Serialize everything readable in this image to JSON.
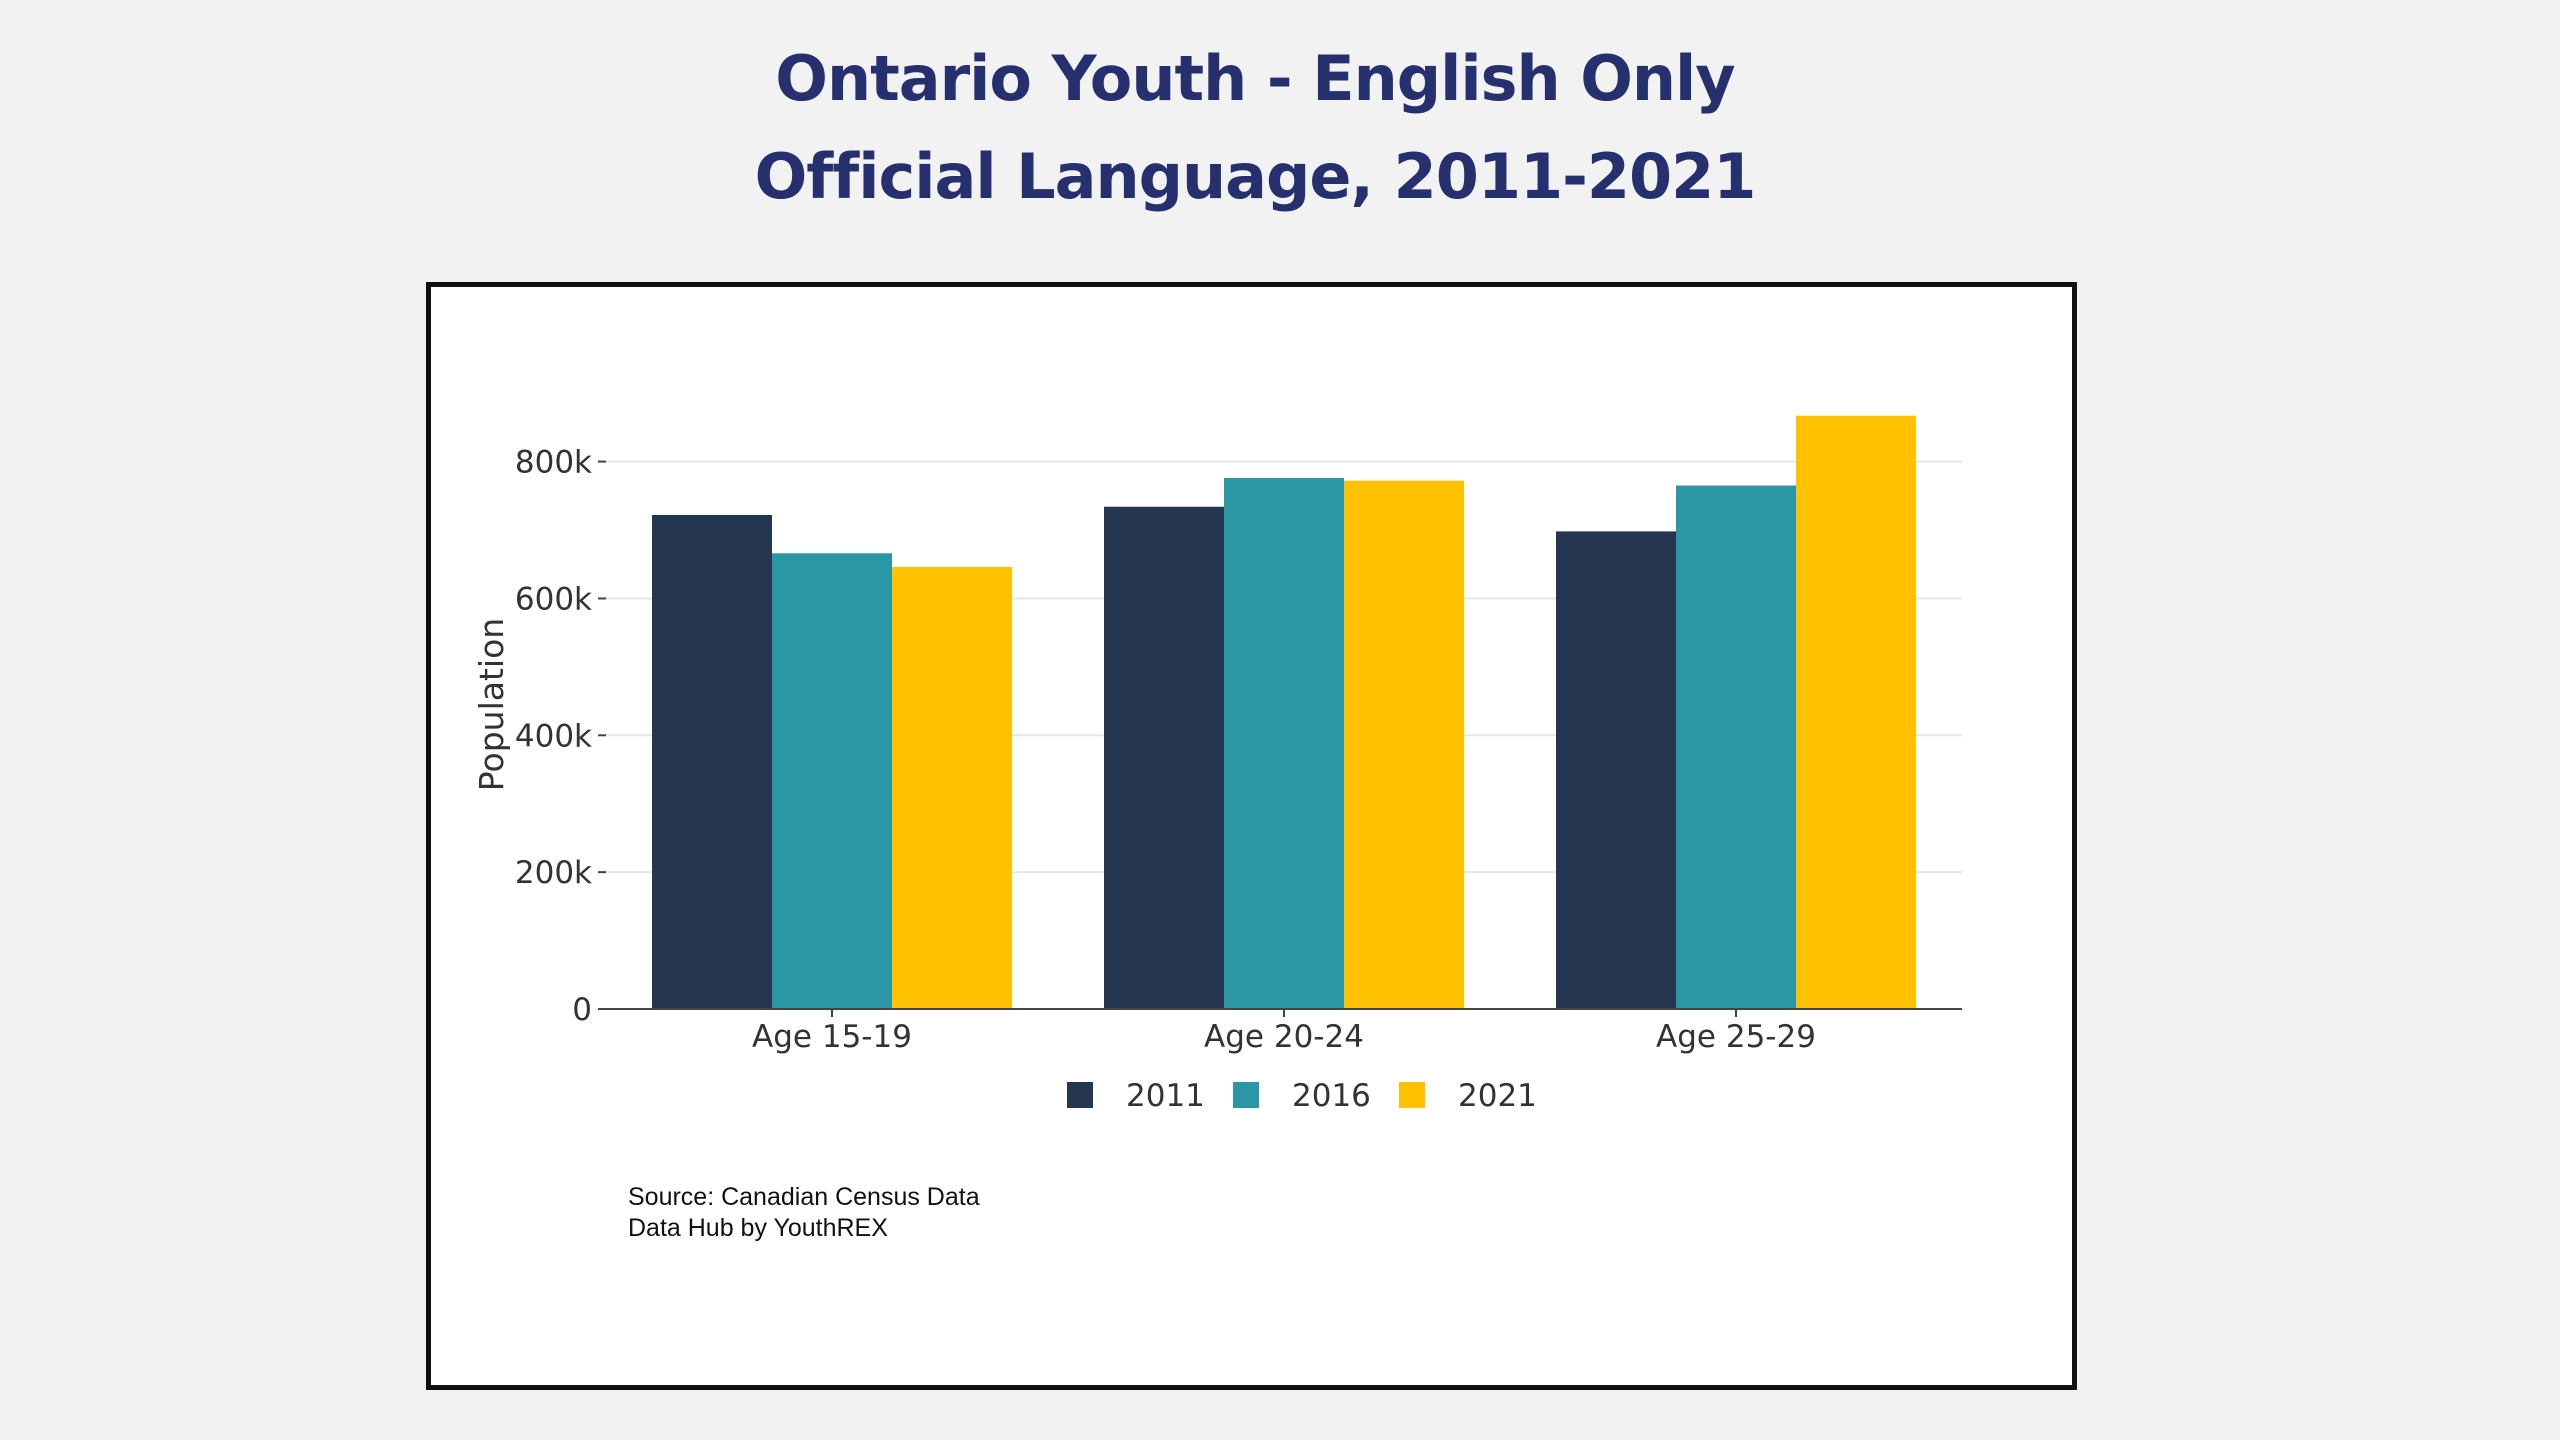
{
  "title_lines": [
    "Ontario Youth - English Only",
    "Official Language, 2011-2021"
  ],
  "source_lines": [
    "Source: Canadian Census Data",
    "Data Hub by YouthREX"
  ],
  "chart_data": {
    "type": "bar",
    "categories": [
      "Age 15-19",
      "Age 20-24",
      "Age 25-29"
    ],
    "series": [
      {
        "name": "2011",
        "color": "#253650",
        "values": [
          722000,
          734000,
          698000
        ]
      },
      {
        "name": "2016",
        "color": "#2a96a6",
        "values": [
          666000,
          776000,
          765000
        ]
      },
      {
        "name": "2021",
        "color": "#ffc100",
        "values": [
          646000,
          772000,
          867000
        ]
      }
    ],
    "ylabel": "Population",
    "xlabel": "",
    "ylim": [
      0,
      890000
    ],
    "yticks": [
      0,
      200000,
      400000,
      600000,
      800000
    ],
    "ytick_labels": [
      "0",
      "200k",
      "400k",
      "600k",
      "800k"
    ],
    "grid": true,
    "legend_position": "bottom-center"
  }
}
